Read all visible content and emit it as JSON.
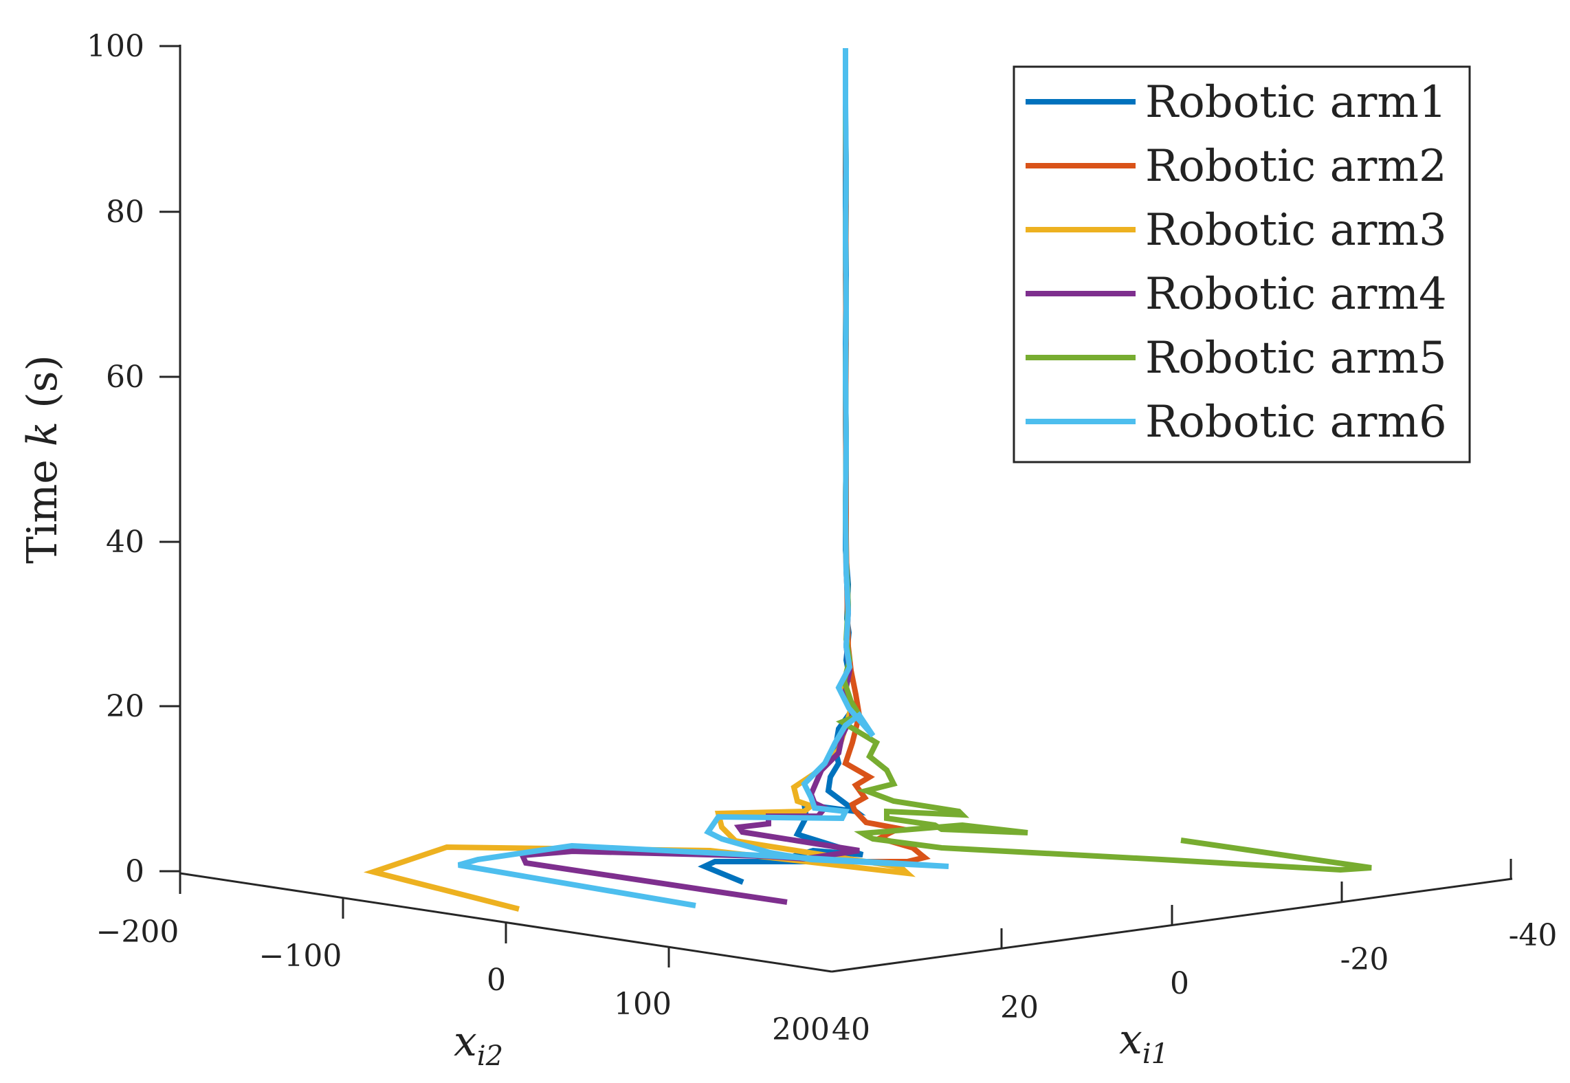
{
  "chart_data": {
    "type": "line",
    "title": "",
    "zlabel": "Time k (s)",
    "zlabel_parts": {
      "text": "Time ",
      "italic": "k",
      "unit": " (s)"
    },
    "x2label": "x_{i2}",
    "x2label_parts": {
      "base": "x",
      "sub": "i2"
    },
    "x1label": "x_{i1}",
    "x1label_parts": {
      "base": "x",
      "sub": "i1"
    },
    "zlim": [
      0,
      100
    ],
    "ztick_labels": [
      "0",
      "20",
      "40",
      "60",
      "80",
      "100"
    ],
    "x2_tick_labels": [
      "−200",
      "−100",
      "0",
      "100",
      "200"
    ],
    "x1_tick_labels": [
      "40",
      "20",
      "0",
      "-20",
      "-40"
    ],
    "legend_position": "top-right",
    "series": [
      {
        "name": "Robotic arm1",
        "color": "#0072BD",
        "points": [
          [
            1081,
            1283
          ],
          [
            1025,
            1260
          ],
          [
            1040,
            1253
          ],
          [
            1175,
            1253
          ],
          [
            1162,
            1243
          ],
          [
            1183,
            1237
          ],
          [
            1255,
            1243
          ],
          [
            1165,
            1215
          ],
          [
            1160,
            1213
          ],
          [
            1173,
            1188
          ],
          [
            1170,
            1170
          ],
          [
            1245,
            1180
          ],
          [
            1205,
            1150
          ],
          [
            1208,
            1130
          ],
          [
            1220,
            1110
          ],
          [
            1215,
            1090
          ],
          [
            1220,
            1060
          ],
          [
            1238,
            1035
          ],
          [
            1228,
            1000
          ],
          [
            1236,
            985
          ],
          [
            1231,
            960
          ],
          [
            1235,
            920
          ],
          [
            1232,
            900
          ],
          [
            1234,
            850
          ],
          [
            1230,
            800
          ],
          [
            1230,
            760
          ],
          [
            1231,
            700
          ],
          [
            1230,
            600
          ],
          [
            1230,
            500
          ],
          [
            1231,
            400
          ],
          [
            1230,
            300
          ],
          [
            1230,
            200
          ],
          [
            1230,
            130
          ]
        ]
      },
      {
        "name": "Robotic arm2",
        "color": "#D95319",
        "points": [
          [
            1315,
            1265
          ],
          [
            1300,
            1258
          ],
          [
            1260,
            1253
          ],
          [
            1320,
            1253
          ],
          [
            1345,
            1247
          ],
          [
            1340,
            1243
          ],
          [
            1328,
            1233
          ],
          [
            1280,
            1219
          ],
          [
            1295,
            1211
          ],
          [
            1308,
            1205
          ],
          [
            1260,
            1196
          ],
          [
            1243,
            1178
          ],
          [
            1240,
            1170
          ],
          [
            1258,
            1160
          ],
          [
            1245,
            1142
          ],
          [
            1265,
            1130
          ],
          [
            1230,
            1110
          ],
          [
            1240,
            1080
          ],
          [
            1250,
            1040
          ],
          [
            1245,
            1010
          ],
          [
            1238,
            975
          ],
          [
            1234,
            940
          ],
          [
            1233,
            900
          ],
          [
            1232,
            850
          ],
          [
            1231,
            780
          ],
          [
            1231,
            700
          ],
          [
            1230,
            600
          ],
          [
            1231,
            500
          ],
          [
            1230,
            400
          ],
          [
            1231,
            300
          ],
          [
            1230,
            200
          ],
          [
            1230,
            120
          ]
        ]
      },
      {
        "name": "Robotic arm3",
        "color": "#EDB120",
        "points": [
          [
            755,
            1322
          ],
          [
            543,
            1268
          ],
          [
            650,
            1232
          ],
          [
            1033,
            1237
          ],
          [
            1320,
            1270
          ],
          [
            1310,
            1261
          ],
          [
            1070,
            1223
          ],
          [
            1050,
            1203
          ],
          [
            1045,
            1183
          ],
          [
            1170,
            1180
          ],
          [
            1180,
            1172
          ],
          [
            1160,
            1165
          ],
          [
            1155,
            1145
          ],
          [
            1200,
            1115
          ],
          [
            1220,
            1090
          ],
          [
            1230,
            1058
          ],
          [
            1238,
            1030
          ],
          [
            1228,
            1000
          ],
          [
            1235,
            970
          ],
          [
            1232,
            930
          ],
          [
            1234,
            880
          ],
          [
            1231,
            820
          ],
          [
            1230,
            740
          ],
          [
            1231,
            650
          ],
          [
            1230,
            550
          ],
          [
            1231,
            450
          ],
          [
            1230,
            350
          ],
          [
            1231,
            250
          ],
          [
            1230,
            170
          ],
          [
            1230,
            140
          ]
        ]
      },
      {
        "name": "Robotic arm4",
        "color": "#7E2F8E",
        "points": [
          [
            1145,
            1312
          ],
          [
            765,
            1255
          ],
          [
            760,
            1244
          ],
          [
            833,
            1238
          ],
          [
            1110,
            1245
          ],
          [
            1170,
            1249
          ],
          [
            1250,
            1237
          ],
          [
            1162,
            1223
          ],
          [
            1080,
            1210
          ],
          [
            1075,
            1203
          ],
          [
            1118,
            1198
          ],
          [
            1118,
            1187
          ],
          [
            1190,
            1187
          ],
          [
            1200,
            1175
          ],
          [
            1185,
            1168
          ],
          [
            1180,
            1155
          ],
          [
            1195,
            1120
          ],
          [
            1220,
            1095
          ],
          [
            1225,
            1070
          ],
          [
            1240,
            1040
          ],
          [
            1230,
            1005
          ],
          [
            1236,
            975
          ],
          [
            1231,
            940
          ],
          [
            1234,
            890
          ],
          [
            1231,
            830
          ],
          [
            1230,
            750
          ],
          [
            1231,
            650
          ],
          [
            1230,
            550
          ],
          [
            1231,
            450
          ],
          [
            1230,
            350
          ],
          [
            1231,
            250
          ],
          [
            1230,
            180
          ],
          [
            1230,
            150
          ]
        ]
      },
      {
        "name": "Robotic arm5",
        "color": "#77AC30",
        "points": [
          [
            1718,
            1222
          ],
          [
            1995,
            1262
          ],
          [
            1950,
            1265
          ],
          [
            1690,
            1250
          ],
          [
            1370,
            1233
          ],
          [
            1270,
            1220
          ],
          [
            1260,
            1215
          ],
          [
            1255,
            1212
          ],
          [
            1400,
            1200
          ],
          [
            1495,
            1211
          ],
          [
            1370,
            1206
          ],
          [
            1360,
            1200
          ],
          [
            1290,
            1190
          ],
          [
            1290,
            1180
          ],
          [
            1400,
            1185
          ],
          [
            1395,
            1180
          ],
          [
            1300,
            1165
          ],
          [
            1260,
            1150
          ],
          [
            1300,
            1140
          ],
          [
            1290,
            1120
          ],
          [
            1265,
            1100
          ],
          [
            1275,
            1080
          ],
          [
            1250,
            1065
          ],
          [
            1225,
            1050
          ],
          [
            1250,
            1040
          ],
          [
            1238,
            1020
          ],
          [
            1228,
            990
          ],
          [
            1236,
            960
          ],
          [
            1231,
            930
          ],
          [
            1234,
            880
          ],
          [
            1231,
            820
          ],
          [
            1230,
            750
          ],
          [
            1231,
            650
          ],
          [
            1230,
            550
          ],
          [
            1231,
            450
          ],
          [
            1230,
            350
          ],
          [
            1231,
            250
          ],
          [
            1230,
            190
          ],
          [
            1230,
            160
          ]
        ]
      },
      {
        "name": "Robotic arm6",
        "color": "#4DBEEE",
        "points": [
          [
            1012,
            1317
          ],
          [
            667,
            1258
          ],
          [
            695,
            1250
          ],
          [
            832,
            1230
          ],
          [
            1125,
            1245
          ],
          [
            1380,
            1260
          ],
          [
            1180,
            1250
          ],
          [
            1120,
            1240
          ],
          [
            1050,
            1220
          ],
          [
            1030,
            1210
          ],
          [
            1045,
            1188
          ],
          [
            1225,
            1190
          ],
          [
            1230,
            1180
          ],
          [
            1185,
            1175
          ],
          [
            1180,
            1160
          ],
          [
            1170,
            1140
          ],
          [
            1200,
            1110
          ],
          [
            1215,
            1080
          ],
          [
            1230,
            1055
          ],
          [
            1250,
            1040
          ],
          [
            1270,
            1070
          ],
          [
            1235,
            1030
          ],
          [
            1220,
            1000
          ],
          [
            1236,
            970
          ],
          [
            1231,
            940
          ],
          [
            1234,
            890
          ],
          [
            1231,
            830
          ],
          [
            1230,
            750
          ],
          [
            1231,
            650
          ],
          [
            1230,
            550
          ],
          [
            1231,
            450
          ],
          [
            1230,
            350
          ],
          [
            1231,
            250
          ],
          [
            1230,
            150
          ],
          [
            1230,
            70
          ]
        ]
      }
    ]
  }
}
